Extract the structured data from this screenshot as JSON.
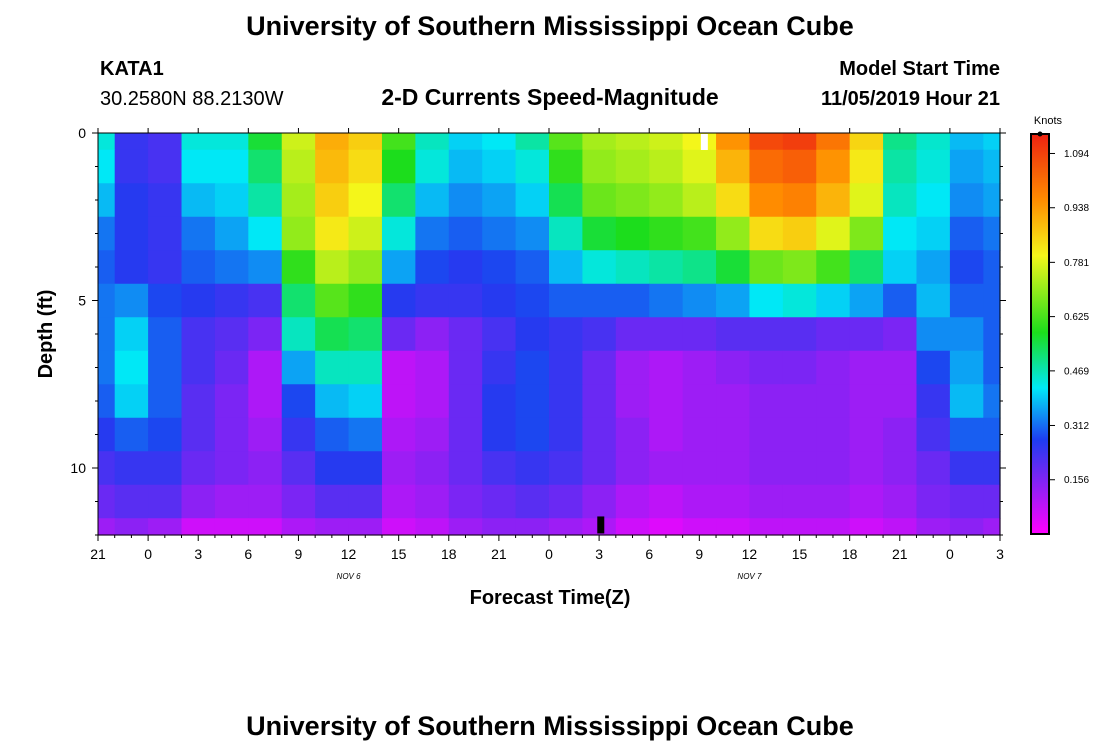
{
  "page_title": "University of Southern Mississippi Ocean Cube",
  "footer_title": "University of Southern Mississippi Ocean Cube",
  "station": {
    "id": "KATA1",
    "coords": "30.2580N 88.2130W"
  },
  "model": {
    "start_label": "Model Start Time",
    "start_value": "11/05/2019 Hour 21"
  },
  "chart_data": {
    "type": "heatmap",
    "title": "2-D Currents Speed-Magnitude",
    "xlabel": "Forecast Time(Z)",
    "ylabel": "Depth (ft)",
    "x_ticks": [
      "21",
      "0",
      "3",
      "6",
      "9",
      "12",
      "15",
      "18",
      "21",
      "0",
      "3",
      "6",
      "9",
      "12",
      "15",
      "18",
      "21",
      "0",
      "3"
    ],
    "x_range_hours": [
      0,
      54
    ],
    "day_labels": [
      {
        "text": "NOV 6",
        "hour": 15
      },
      {
        "text": "NOV 7",
        "hour": 39
      }
    ],
    "y_ticks": [
      "0",
      "5",
      "10"
    ],
    "y_range_ft": [
      0,
      12
    ],
    "units": "Knots",
    "colorbar_ticks": [
      "1.094",
      "0.938",
      "0.781",
      "0.625",
      "0.469",
      "0.312",
      "0.156"
    ],
    "colorbar_range": [
      0,
      1.15
    ],
    "colors": {
      "magenta": "#ff00ff",
      "purple": "#9d1df5",
      "blue": "#1e3cf0",
      "cyan": "#00e8f6",
      "green": "#1cdd1c",
      "yellow": "#f4f61a",
      "orange": "#ff8c00",
      "red": "#ee2211"
    },
    "depth_levels_ft": [
      0,
      1,
      2,
      3,
      4,
      5,
      6,
      7,
      8,
      9,
      10,
      11,
      12
    ],
    "time_hours": [
      0,
      2,
      4,
      6,
      8,
      10,
      12,
      14,
      16,
      18,
      20,
      22,
      24,
      26,
      28,
      30,
      32,
      34,
      36,
      38,
      40,
      42,
      44,
      46,
      48,
      50,
      52,
      54
    ],
    "speed_grid_knots": [
      [
        0.44,
        0.24,
        0.22,
        0.44,
        0.44,
        0.56,
        0.76,
        0.91,
        0.86,
        0.62,
        0.46,
        0.4,
        0.42,
        0.48,
        0.64,
        0.72,
        0.74,
        0.76,
        0.8,
        0.95,
        1.08,
        1.1,
        1.0,
        0.85,
        0.5,
        0.45,
        0.38,
        0.4
      ],
      [
        0.42,
        0.24,
        0.22,
        0.42,
        0.42,
        0.52,
        0.74,
        0.89,
        0.84,
        0.58,
        0.44,
        0.38,
        0.4,
        0.44,
        0.6,
        0.7,
        0.72,
        0.74,
        0.78,
        0.9,
        1.02,
        1.04,
        0.95,
        0.82,
        0.48,
        0.44,
        0.36,
        0.38
      ],
      [
        0.38,
        0.26,
        0.24,
        0.38,
        0.4,
        0.48,
        0.72,
        0.86,
        0.8,
        0.52,
        0.38,
        0.34,
        0.36,
        0.4,
        0.54,
        0.66,
        0.68,
        0.7,
        0.74,
        0.84,
        0.96,
        0.98,
        0.9,
        0.78,
        0.46,
        0.42,
        0.34,
        0.36
      ],
      [
        0.32,
        0.26,
        0.24,
        0.32,
        0.36,
        0.42,
        0.7,
        0.82,
        0.76,
        0.44,
        0.32,
        0.3,
        0.32,
        0.34,
        0.46,
        0.56,
        0.58,
        0.6,
        0.62,
        0.7,
        0.84,
        0.86,
        0.78,
        0.68,
        0.42,
        0.4,
        0.3,
        0.32
      ],
      [
        0.3,
        0.26,
        0.24,
        0.3,
        0.32,
        0.34,
        0.6,
        0.74,
        0.7,
        0.36,
        0.28,
        0.26,
        0.28,
        0.3,
        0.38,
        0.44,
        0.46,
        0.48,
        0.5,
        0.56,
        0.66,
        0.68,
        0.62,
        0.52,
        0.4,
        0.36,
        0.28,
        0.3
      ],
      [
        0.32,
        0.34,
        0.28,
        0.26,
        0.24,
        0.22,
        0.52,
        0.64,
        0.6,
        0.26,
        0.24,
        0.24,
        0.26,
        0.28,
        0.3,
        0.3,
        0.3,
        0.32,
        0.34,
        0.36,
        0.42,
        0.44,
        0.4,
        0.36,
        0.3,
        0.38,
        0.3,
        0.3
      ],
      [
        0.32,
        0.4,
        0.3,
        0.22,
        0.2,
        0.16,
        0.46,
        0.54,
        0.52,
        0.18,
        0.14,
        0.18,
        0.22,
        0.26,
        0.24,
        0.22,
        0.18,
        0.18,
        0.18,
        0.2,
        0.2,
        0.2,
        0.18,
        0.18,
        0.16,
        0.34,
        0.34,
        0.3
      ],
      [
        0.32,
        0.42,
        0.3,
        0.22,
        0.18,
        0.1,
        0.36,
        0.46,
        0.46,
        0.08,
        0.1,
        0.18,
        0.24,
        0.28,
        0.24,
        0.18,
        0.12,
        0.1,
        0.12,
        0.14,
        0.16,
        0.16,
        0.14,
        0.12,
        0.12,
        0.28,
        0.36,
        0.3
      ],
      [
        0.3,
        0.4,
        0.3,
        0.2,
        0.16,
        0.1,
        0.28,
        0.38,
        0.4,
        0.08,
        0.1,
        0.18,
        0.26,
        0.28,
        0.24,
        0.18,
        0.12,
        0.1,
        0.12,
        0.12,
        0.14,
        0.14,
        0.14,
        0.12,
        0.12,
        0.24,
        0.38,
        0.32
      ],
      [
        0.26,
        0.3,
        0.28,
        0.2,
        0.16,
        0.12,
        0.24,
        0.3,
        0.32,
        0.1,
        0.12,
        0.18,
        0.26,
        0.28,
        0.24,
        0.18,
        0.14,
        0.1,
        0.12,
        0.12,
        0.14,
        0.14,
        0.14,
        0.12,
        0.14,
        0.22,
        0.3,
        0.3
      ],
      [
        0.22,
        0.24,
        0.24,
        0.18,
        0.16,
        0.14,
        0.2,
        0.26,
        0.26,
        0.12,
        0.14,
        0.18,
        0.22,
        0.24,
        0.22,
        0.18,
        0.14,
        0.12,
        0.12,
        0.12,
        0.14,
        0.14,
        0.14,
        0.12,
        0.14,
        0.18,
        0.24,
        0.24
      ],
      [
        0.18,
        0.2,
        0.2,
        0.14,
        0.12,
        0.12,
        0.16,
        0.2,
        0.2,
        0.1,
        0.12,
        0.16,
        0.18,
        0.2,
        0.18,
        0.14,
        0.1,
        0.08,
        0.1,
        0.1,
        0.12,
        0.12,
        0.12,
        0.1,
        0.12,
        0.16,
        0.18,
        0.18
      ],
      [
        0.12,
        0.14,
        0.12,
        0.06,
        0.06,
        0.06,
        0.1,
        0.12,
        0.12,
        0.06,
        0.08,
        0.12,
        0.14,
        0.14,
        0.12,
        0.1,
        0.06,
        0.04,
        0.06,
        0.06,
        0.08,
        0.08,
        0.08,
        0.06,
        0.08,
        0.12,
        0.14,
        0.12
      ]
    ],
    "markers": [
      {
        "name": "white-cell-marker",
        "hour": 36.3,
        "depth_ft": 0.25
      },
      {
        "name": "black-bar-marker",
        "hour": 30.1,
        "depth_ft": 11.7
      }
    ]
  }
}
